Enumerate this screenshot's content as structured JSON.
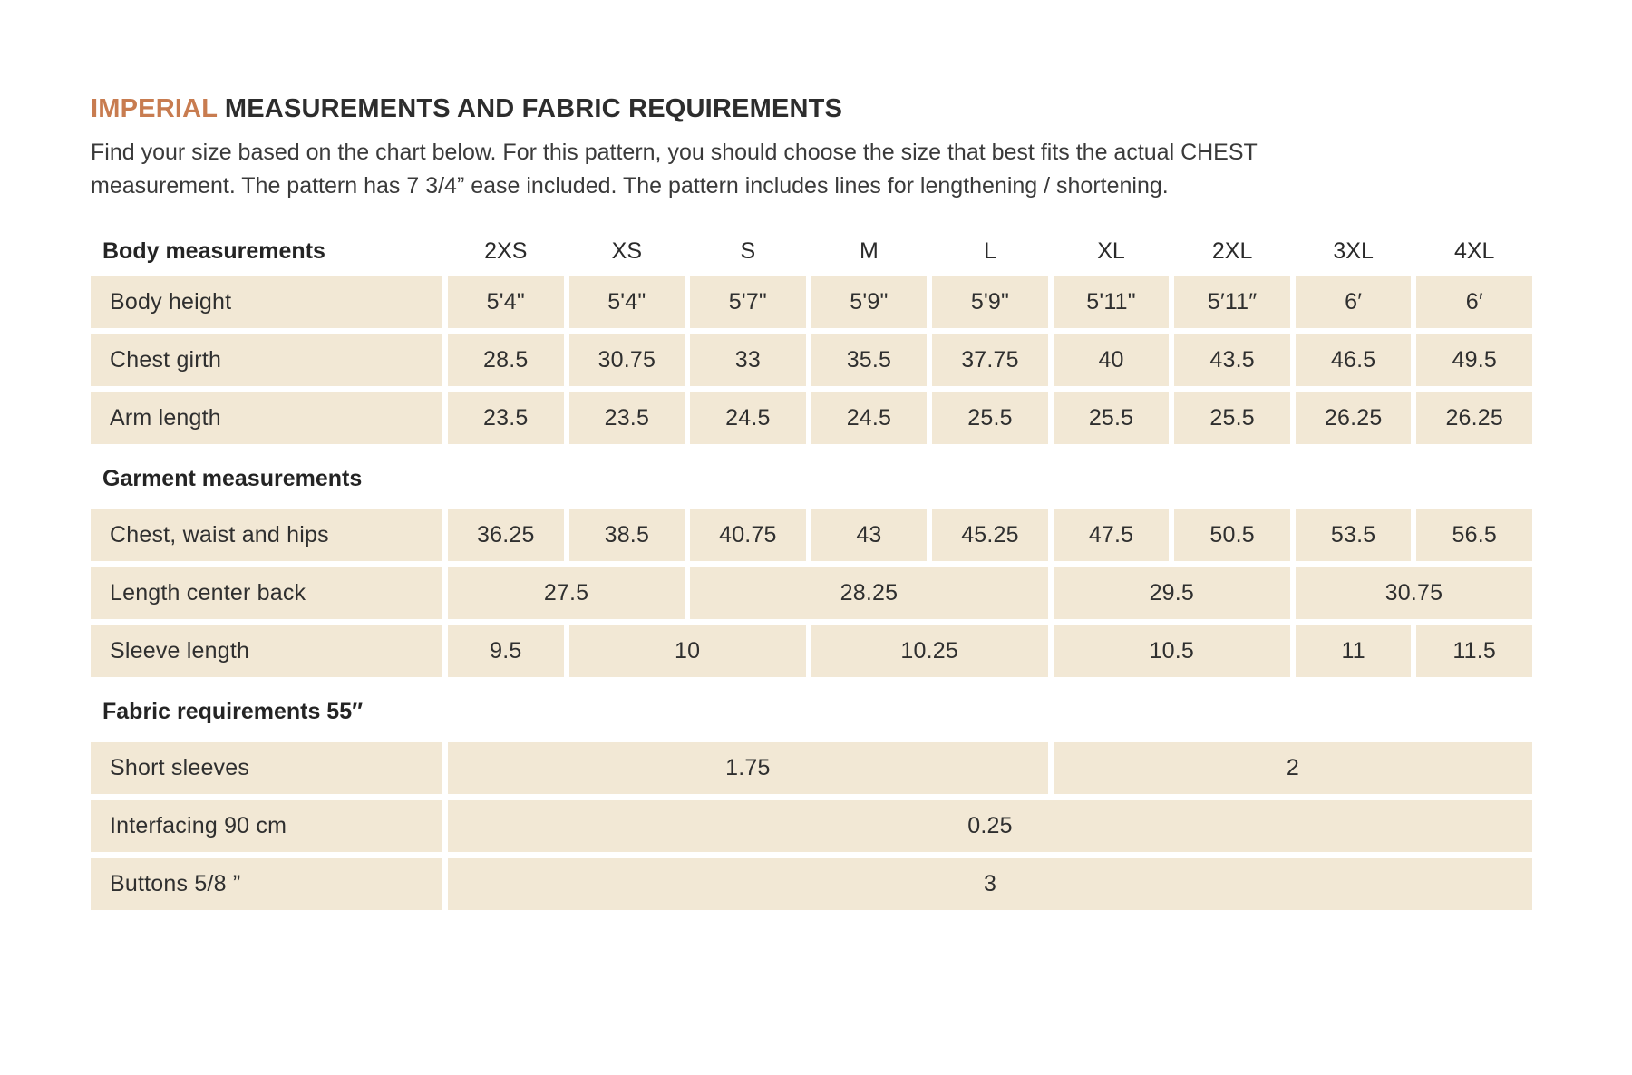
{
  "page": {
    "title_accent": "IMPERIAL",
    "title_rest": "MEASUREMENTS AND FABRIC REQUIREMENTS",
    "intro_line1": "Find your size based on the chart below. For this pattern, you should choose the size that best fits the actual CHEST",
    "intro_line2": "measurement. The pattern has 7 3/4” ease included. The pattern includes lines for lengthening / shortening."
  },
  "colors": {
    "accent_orange": "#c87c50",
    "cell_background": "#f2e8d5",
    "text": "#2f2f2f"
  },
  "table": {
    "sizes": [
      "2XS",
      "XS",
      "S",
      "M",
      "L",
      "XL",
      "2XL",
      "3XL",
      "4XL"
    ],
    "sections": [
      {
        "header": "Body measurements",
        "sizes_in_header": true,
        "rows": [
          {
            "label": "Body height",
            "cells": [
              {
                "v": "5'4\"",
                "span": 1
              },
              {
                "v": "5'4\"",
                "span": 1
              },
              {
                "v": "5'7\"",
                "span": 1
              },
              {
                "v": "5'9\"",
                "span": 1
              },
              {
                "v": "5'9\"",
                "span": 1
              },
              {
                "v": "5'11\"",
                "span": 1
              },
              {
                "v": "5′11″",
                "span": 1
              },
              {
                "v": "6′",
                "span": 1
              },
              {
                "v": "6′",
                "span": 1
              }
            ]
          },
          {
            "label": "Chest girth",
            "cells": [
              {
                "v": "28.5",
                "span": 1
              },
              {
                "v": "30.75",
                "span": 1
              },
              {
                "v": "33",
                "span": 1
              },
              {
                "v": "35.5",
                "span": 1
              },
              {
                "v": "37.75",
                "span": 1
              },
              {
                "v": "40",
                "span": 1
              },
              {
                "v": "43.5",
                "span": 1
              },
              {
                "v": "46.5",
                "span": 1
              },
              {
                "v": "49.5",
                "span": 1
              }
            ]
          },
          {
            "label": "Arm length",
            "cells": [
              {
                "v": "23.5",
                "span": 1
              },
              {
                "v": "23.5",
                "span": 1
              },
              {
                "v": "24.5",
                "span": 1
              },
              {
                "v": "24.5",
                "span": 1
              },
              {
                "v": "25.5",
                "span": 1
              },
              {
                "v": "25.5",
                "span": 1
              },
              {
                "v": "25.5",
                "span": 1
              },
              {
                "v": "26.25",
                "span": 1
              },
              {
                "v": "26.25",
                "span": 1
              }
            ]
          }
        ]
      },
      {
        "header": "Garment measurements",
        "sizes_in_header": false,
        "rows": [
          {
            "label": "Chest, waist and hips",
            "cells": [
              {
                "v": "36.25",
                "span": 1
              },
              {
                "v": "38.5",
                "span": 1
              },
              {
                "v": "40.75",
                "span": 1
              },
              {
                "v": "43",
                "span": 1
              },
              {
                "v": "45.25",
                "span": 1
              },
              {
                "v": "47.5",
                "span": 1
              },
              {
                "v": "50.5",
                "span": 1
              },
              {
                "v": "53.5",
                "span": 1
              },
              {
                "v": "56.5",
                "span": 1
              }
            ]
          },
          {
            "label": "Length center back",
            "cells": [
              {
                "v": "27.5",
                "span": 2
              },
              {
                "v": "28.25",
                "span": 3
              },
              {
                "v": "29.5",
                "span": 2
              },
              {
                "v": "30.75",
                "span": 2
              }
            ]
          },
          {
            "label": "Sleeve length",
            "cells": [
              {
                "v": "9.5",
                "span": 1
              },
              {
                "v": "10",
                "span": 2
              },
              {
                "v": "10.25",
                "span": 2
              },
              {
                "v": "10.5",
                "span": 2
              },
              {
                "v": "11",
                "span": 1
              },
              {
                "v": "11.5",
                "span": 1
              }
            ]
          }
        ]
      },
      {
        "header": "Fabric requirements 55″",
        "sizes_in_header": false,
        "rows": [
          {
            "label": "Short sleeves",
            "cells": [
              {
                "v": "1.75",
                "span": 5
              },
              {
                "v": "2",
                "span": 4
              }
            ]
          },
          {
            "label": "Interfacing 90 cm",
            "cells": [
              {
                "v": "0.25",
                "span": 9
              }
            ]
          },
          {
            "label": "Buttons 5/8 ”",
            "cells": [
              {
                "v": "3",
                "span": 9
              }
            ]
          }
        ]
      }
    ]
  }
}
